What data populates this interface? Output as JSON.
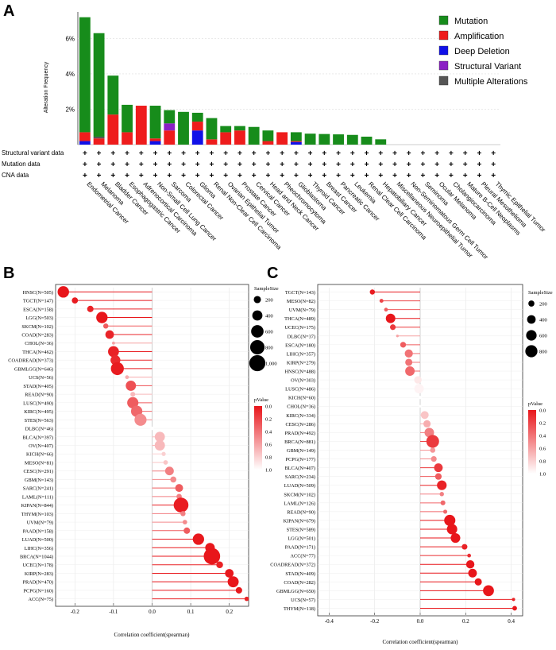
{
  "panel_labels": {
    "a": "A",
    "b": "B",
    "c": "C"
  },
  "chart_data": [
    {
      "type": "bar",
      "panel": "A",
      "ylabel": "Alteration Frequency",
      "ylim": [
        0,
        7.5
      ],
      "yticks": [
        "2%",
        "4%",
        "6%"
      ],
      "yticks_values": [
        2,
        4,
        6
      ],
      "legend": [
        {
          "name": "Mutation",
          "color": "#178c1b"
        },
        {
          "name": "Amplification",
          "color": "#ee1c1c"
        },
        {
          "name": "Deep Deletion",
          "color": "#1010e8"
        },
        {
          "name": "Structural Variant",
          "color": "#8a1fc4"
        },
        {
          "name": "Multiple Alterations",
          "color": "#555555"
        }
      ],
      "rows": [
        "Structural variant data",
        "Mutation data",
        "CNA data"
      ],
      "row_marker": "+",
      "categories": [
        "Endometrial Cancer",
        "Melanoma",
        "Bladder Cancer",
        "Esophagogastric Cancer",
        "Adrenocortical Carcinoma",
        "Non-Small Cell Lung Cancer",
        "Sarcoma",
        "Colorectal Cancer",
        "Glioma",
        "Renal Non-Clear Cell Carcinoma",
        "Ovarian Epithelial Tumor",
        "Prostate Cancer",
        "Cervical Cancer",
        "Head and Neck Cancer",
        "Pheochromocytoma",
        "Glioblastoma",
        "Thyroid Cancer",
        "Breast Cancer",
        "Pancreatic Cancer",
        "Leukemia",
        "Renal Clear Cell Carcinoma",
        "Hepatobiliary Cancer",
        "Miscellaneous Neuroepithelial Tumor",
        "Non-Seminomatous Germ Cell Tumor",
        "Seminoma",
        "Ocular Melanoma",
        "Cholangiocarcinoma",
        "Mature B-Cell Neoplasms",
        "Pleural Mesothelioma",
        "Thymic Epithelial Tumor"
      ],
      "series": [
        {
          "name": "Deep Deletion",
          "values": [
            0.2,
            0,
            0,
            0,
            0,
            0.2,
            0,
            0,
            0.8,
            0,
            0,
            0,
            0,
            0,
            0,
            0.15,
            0,
            0,
            0,
            0,
            0,
            0,
            0,
            0,
            0,
            0,
            0,
            0,
            0,
            0
          ]
        },
        {
          "name": "Amplification",
          "values": [
            0.5,
            0.35,
            1.7,
            0.7,
            2.2,
            0.15,
            0.8,
            0,
            0.5,
            0.3,
            0.7,
            0.8,
            0,
            0.2,
            0.7,
            0.05,
            0,
            0,
            0,
            0,
            0,
            0,
            0,
            0,
            0,
            0,
            0,
            0,
            0,
            0
          ]
        },
        {
          "name": "Structural Variant",
          "values": [
            0,
            0,
            0,
            0,
            0,
            0,
            0.4,
            0,
            0,
            0,
            0,
            0,
            0,
            0,
            0,
            0,
            0,
            0,
            0,
            0,
            0,
            0,
            0,
            0,
            0,
            0,
            0,
            0,
            0,
            0
          ]
        },
        {
          "name": "Multiple Alterations",
          "values": [
            0,
            0.1,
            0,
            0,
            0,
            0,
            0,
            0,
            0,
            0,
            0,
            0,
            0,
            0,
            0,
            0,
            0,
            0,
            0,
            0,
            0,
            0,
            0,
            0,
            0,
            0,
            0,
            0,
            0,
            0
          ]
        },
        {
          "name": "Mutation",
          "values": [
            6.5,
            5.85,
            2.2,
            1.55,
            0,
            1.85,
            0.75,
            1.85,
            0.5,
            1.2,
            0.35,
            0.25,
            1.0,
            0.6,
            0,
            0.5,
            0.62,
            0.6,
            0.58,
            0.55,
            0.45,
            0.3,
            0,
            0,
            0,
            0,
            0,
            0,
            0,
            0
          ]
        }
      ]
    },
    {
      "type": "scatter",
      "panel": "B",
      "xlabel": "Correlation coefficient(spearman)",
      "xlim": [
        -0.25,
        0.25
      ],
      "xticks": [
        -0.2,
        -0.1,
        0.0,
        0.1,
        0.2
      ],
      "xtick_labels": [
        "-0.2",
        "-0.1",
        "0.0",
        "0.1",
        "0.2"
      ],
      "legend_size": {
        "title": "SampleSize",
        "labels": [
          "200",
          "400",
          "600",
          "800",
          "1,000"
        ],
        "values": [
          200,
          400,
          600,
          800,
          1000
        ]
      },
      "legend_color": {
        "title": "pValue",
        "labels": [
          "0.0",
          "0.2",
          "0.4",
          "0.6",
          "0.8",
          "1.0"
        ]
      },
      "categories": [
        "HNSC(N=505)",
        "TGCT(N=147)",
        "ESCA(N=158)",
        "LGG(N=503)",
        "SKCM(N=102)",
        "COAD(N=283)",
        "CHOL(N=36)",
        "THCA(N=462)",
        "COADREAD(N=373)",
        "GBMLGG(N=646)",
        "UCS(N=56)",
        "STAD(N=405)",
        "READ(N=90)",
        "LUSC(N=490)",
        "KIRC(N=495)",
        "STES(N=563)",
        "DLBC(N=46)",
        "BLCA(N=397)",
        "OV(N=407)",
        "KICH(N=66)",
        "MESO(N=81)",
        "CESC(N=291)",
        "GBM(N=143)",
        "SARC(N=241)",
        "LAML(N=111)",
        "KIPAN(N=844)",
        "THYM(N=103)",
        "UVM(N=79)",
        "PAAD(N=158)",
        "LUAD(N=500)",
        "LIHC(N=356)",
        "BRCA(N=1044)",
        "UCEC(N=178)",
        "KIRP(N=283)",
        "PRAD(N=470)",
        "PCPG(N=160)",
        "ACC(N=75)"
      ],
      "values": [
        -0.23,
        -0.2,
        -0.16,
        -0.13,
        -0.12,
        -0.11,
        -0.1,
        -0.1,
        -0.095,
        -0.09,
        -0.065,
        -0.055,
        -0.05,
        -0.05,
        -0.04,
        -0.03,
        0.0,
        0.02,
        0.02,
        0.03,
        0.035,
        0.045,
        0.055,
        0.07,
        0.07,
        0.075,
        0.08,
        0.085,
        0.09,
        0.12,
        0.15,
        0.155,
        0.175,
        0.2,
        0.21,
        0.225,
        0.245
      ],
      "sizes": [
        505,
        147,
        158,
        503,
        102,
        283,
        36,
        462,
        373,
        646,
        56,
        405,
        90,
        490,
        495,
        563,
        46,
        397,
        407,
        66,
        81,
        291,
        143,
        241,
        111,
        844,
        103,
        79,
        158,
        500,
        356,
        1044,
        178,
        283,
        470,
        160,
        75
      ],
      "pvalues": [
        0,
        0.02,
        0.05,
        0.0,
        0.3,
        0.06,
        0.6,
        0.05,
        0.08,
        0.02,
        0.65,
        0.25,
        0.7,
        0.3,
        0.35,
        0.5,
        1.0,
        0.7,
        0.7,
        0.8,
        0.75,
        0.45,
        0.5,
        0.3,
        0.45,
        0.03,
        0.45,
        0.5,
        0.3,
        0.01,
        0.01,
        0.0,
        0.05,
        0.01,
        0.0,
        0.01,
        0.05
      ]
    },
    {
      "type": "scatter",
      "panel": "C",
      "xlabel": "Correlation coefficient(spearman)",
      "xlim": [
        -0.45,
        0.45
      ],
      "xticks": [
        -0.4,
        -0.2,
        0.0,
        0.2,
        0.4
      ],
      "xtick_labels": [
        "-0.4",
        "-0.2",
        "0.0",
        "0.2",
        "0.4"
      ],
      "legend_size": {
        "title": "SampleSize",
        "labels": [
          "200",
          "400",
          "600",
          "800"
        ],
        "values": [
          200,
          400,
          600,
          800
        ]
      },
      "legend_color": {
        "title": "pValue",
        "labels": [
          "0.0",
          "0.2",
          "0.4",
          "0.6",
          "0.8",
          "1.0"
        ]
      },
      "categories": [
        "TGCT(N=143)",
        "MESO(N=82)",
        "UVM(N=79)",
        "THCA(N=489)",
        "UCEC(N=175)",
        "DLBC(N=37)",
        "ESCA(N=180)",
        "LIHC(N=357)",
        "KIRP(N=279)",
        "HNSC(N=488)",
        "OV(N=303)",
        "LUSC(N=486)",
        "KICH(N=60)",
        "CHOL(N=36)",
        "KIRC(N=334)",
        "CESC(N=286)",
        "PRAD(N=492)",
        "BRCA(N=881)",
        "GBM(N=149)",
        "PCPG(N=177)",
        "BLCA(N=407)",
        "SARC(N=234)",
        "LUAD(N=509)",
        "SKCM(N=102)",
        "LAML(N=126)",
        "READ(N=90)",
        "KIPAN(N=679)",
        "STES(N=589)",
        "LGG(N=501)",
        "PAAD(N=171)",
        "ACC(N=77)",
        "COADREAD(N=372)",
        "STAD(N=409)",
        "COAD(N=282)",
        "GBMLGG(N=650)",
        "UCS(N=57)",
        "THYM(N=118)"
      ],
      "values": [
        -0.21,
        -0.17,
        -0.15,
        -0.13,
        -0.12,
        -0.1,
        -0.075,
        -0.05,
        -0.05,
        -0.045,
        -0.01,
        -0.005,
        0.0,
        0.0,
        0.02,
        0.03,
        0.04,
        0.055,
        0.055,
        0.06,
        0.08,
        0.08,
        0.095,
        0.095,
        0.1,
        0.11,
        0.13,
        0.14,
        0.155,
        0.195,
        0.215,
        0.22,
        0.23,
        0.255,
        0.3,
        0.41,
        0.415
      ],
      "sizes": [
        143,
        82,
        79,
        489,
        175,
        37,
        180,
        357,
        279,
        488,
        303,
        486,
        60,
        36,
        334,
        286,
        492,
        881,
        149,
        177,
        407,
        234,
        509,
        102,
        126,
        90,
        679,
        589,
        501,
        171,
        77,
        372,
        409,
        282,
        650,
        57,
        118
      ],
      "pvalues": [
        0.02,
        0.2,
        0.3,
        0.0,
        0.15,
        0.6,
        0.3,
        0.4,
        0.4,
        0.35,
        0.9,
        0.95,
        1.0,
        1.0,
        0.75,
        0.65,
        0.45,
        0.15,
        0.55,
        0.5,
        0.15,
        0.3,
        0.05,
        0.45,
        0.35,
        0.35,
        0.0,
        0.0,
        0.0,
        0.05,
        0.1,
        0.0,
        0.0,
        0.0,
        0.0,
        0.05,
        0.0
      ]
    }
  ]
}
